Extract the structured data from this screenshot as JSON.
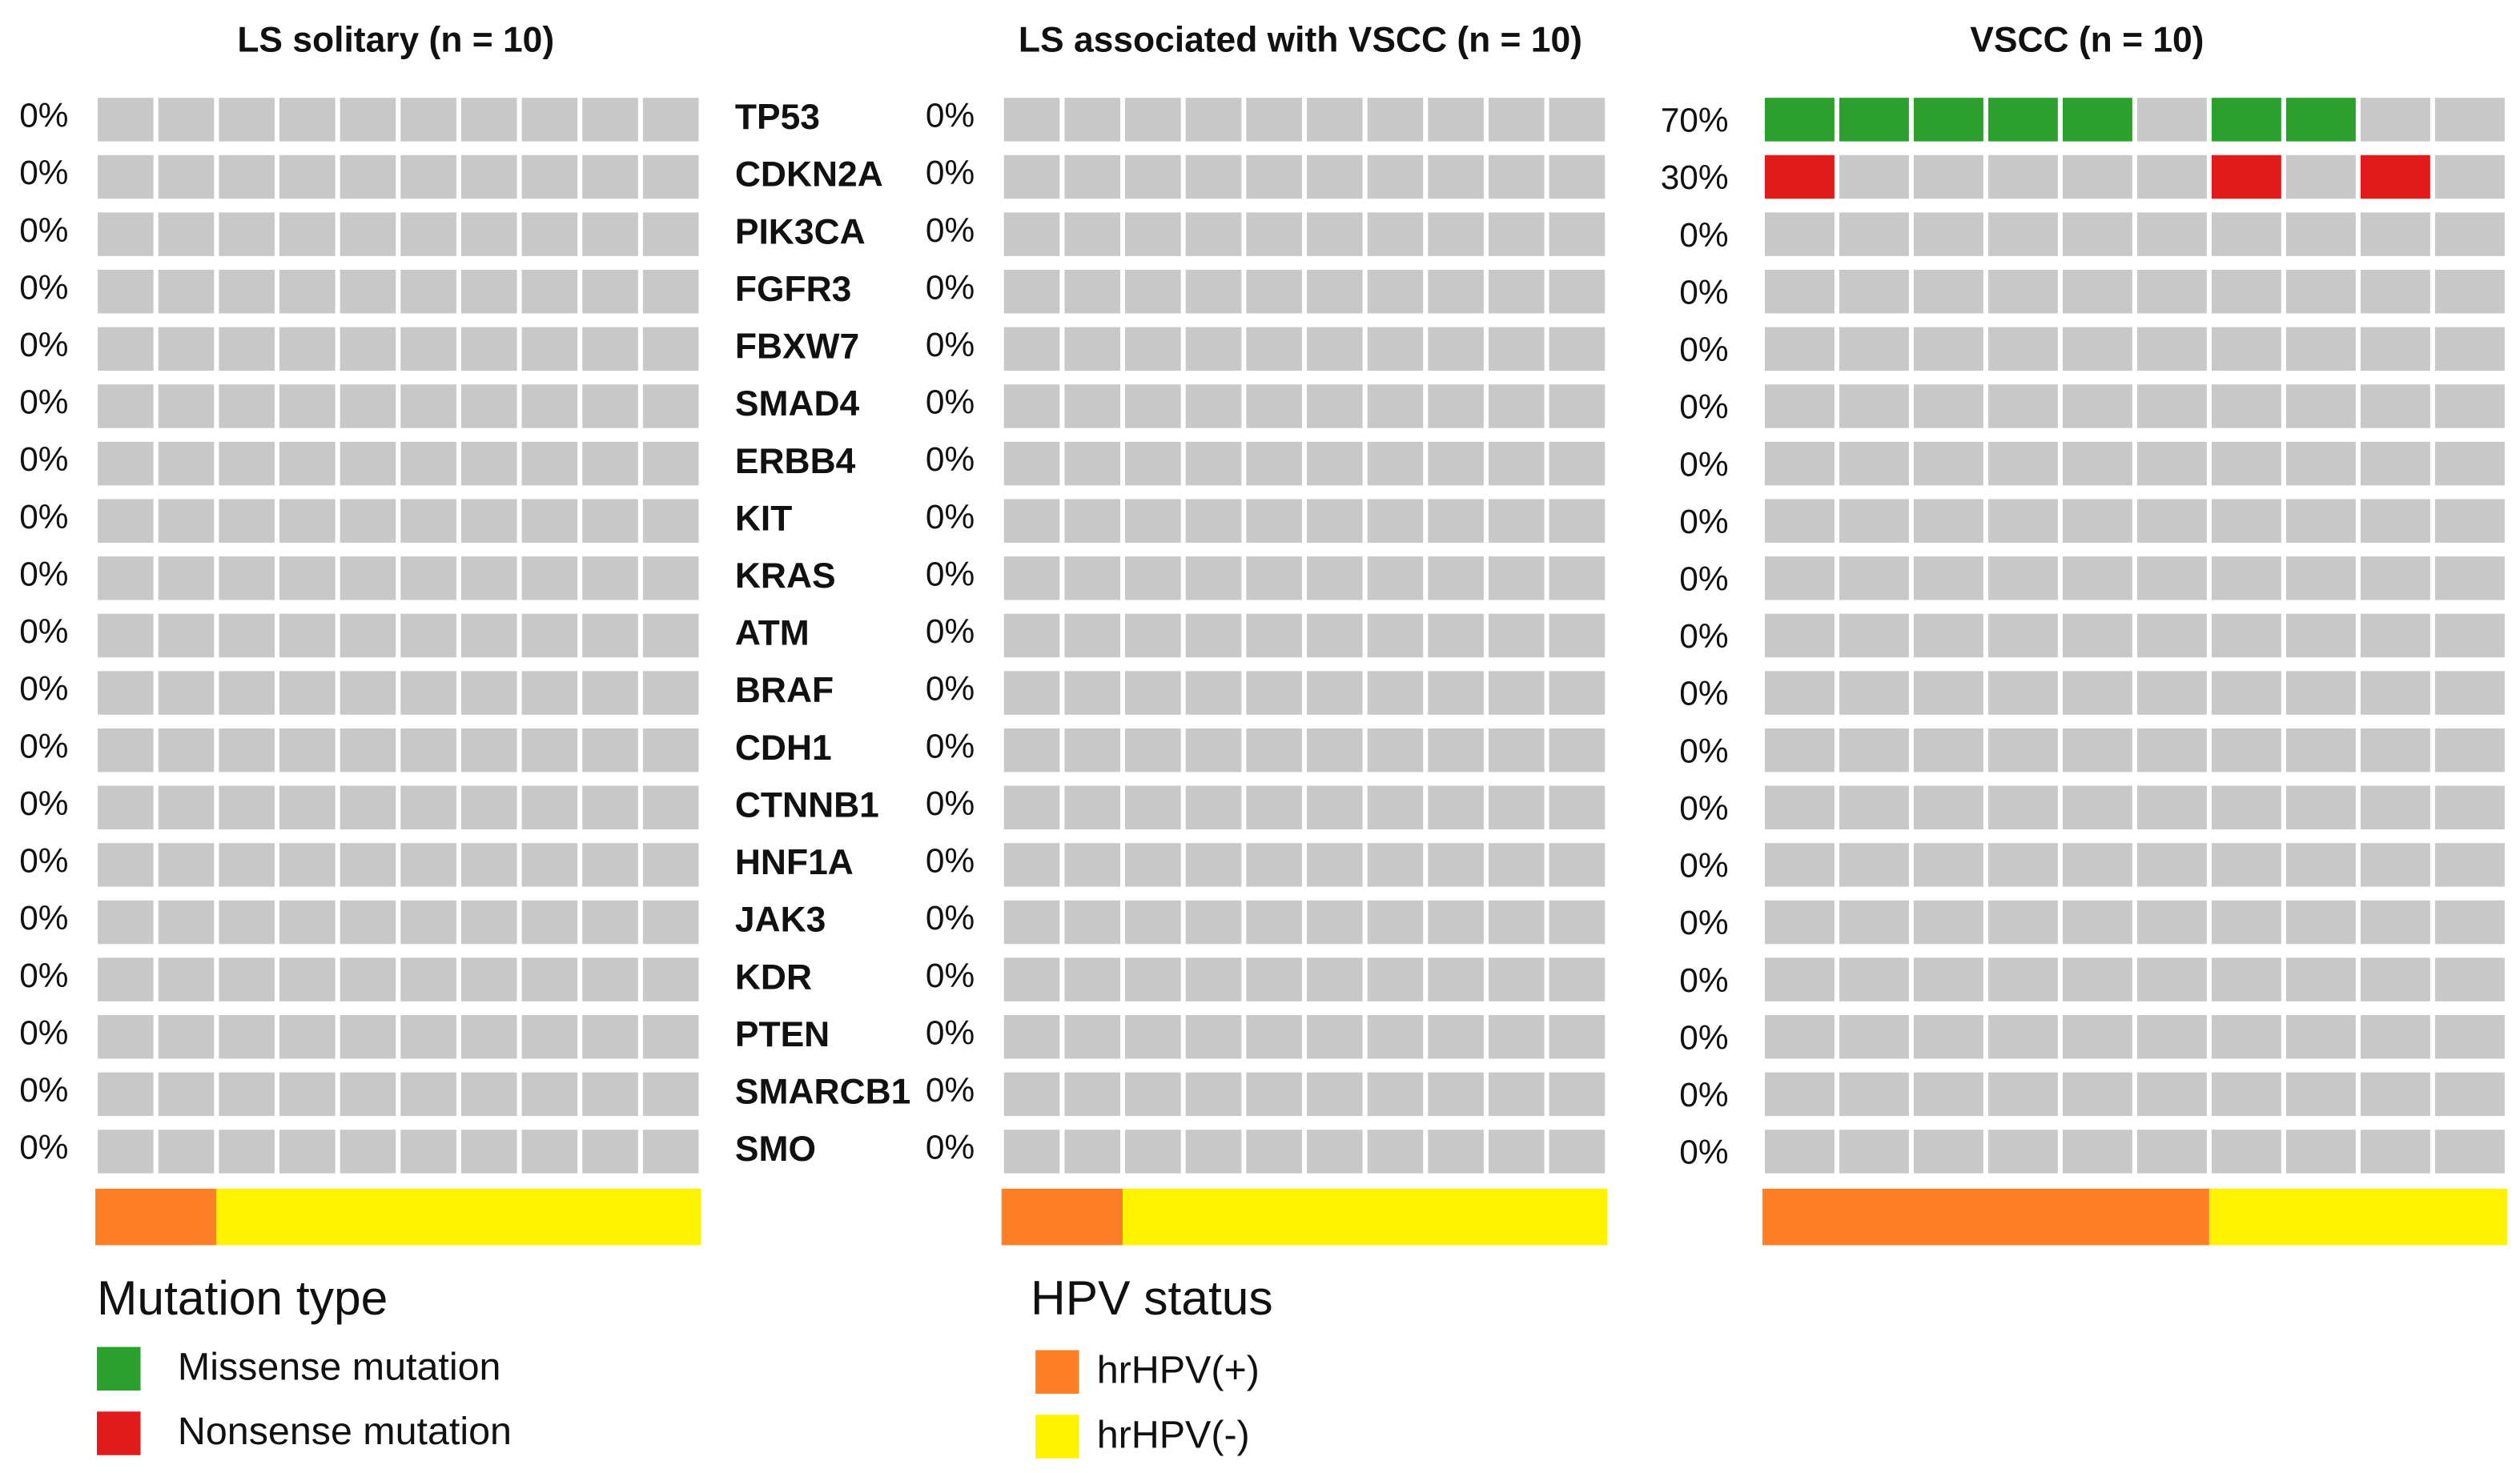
{
  "chart_data": {
    "type": "oncoprint",
    "genes": [
      "TP53",
      "CDKN2A",
      "PIK3CA",
      "FGFR3",
      "FBXW7",
      "SMAD4",
      "ERBB4",
      "KIT",
      "KRAS",
      "ATM",
      "BRAF",
      "CDH1",
      "CTNNB1",
      "HNF1A",
      "JAK3",
      "KDR",
      "PTEN",
      "SMARCB1",
      "SMO"
    ],
    "empty_color": "#c8c8c8",
    "panels": [
      {
        "title": "LS solitary (n = 10)",
        "values": [
          0,
          0,
          0,
          0,
          0,
          0,
          0,
          0,
          0,
          0,
          0,
          0,
          0,
          0,
          0,
          0,
          0,
          0,
          0
        ],
        "value_labels": [
          "0%",
          "0%",
          "0%",
          "0%",
          "0%",
          "0%",
          "0%",
          "0%",
          "0%",
          "0%",
          "0%",
          "0%",
          "0%",
          "0%",
          "0%",
          "0%",
          "0%",
          "0%",
          "0%"
        ],
        "mutations": [
          [
            null,
            null,
            null,
            null,
            null,
            null,
            null,
            null,
            null,
            null
          ],
          [
            null,
            null,
            null,
            null,
            null,
            null,
            null,
            null,
            null,
            null
          ],
          [
            null,
            null,
            null,
            null,
            null,
            null,
            null,
            null,
            null,
            null
          ],
          [
            null,
            null,
            null,
            null,
            null,
            null,
            null,
            null,
            null,
            null
          ],
          [
            null,
            null,
            null,
            null,
            null,
            null,
            null,
            null,
            null,
            null
          ],
          [
            null,
            null,
            null,
            null,
            null,
            null,
            null,
            null,
            null,
            null
          ],
          [
            null,
            null,
            null,
            null,
            null,
            null,
            null,
            null,
            null,
            null
          ],
          [
            null,
            null,
            null,
            null,
            null,
            null,
            null,
            null,
            null,
            null
          ],
          [
            null,
            null,
            null,
            null,
            null,
            null,
            null,
            null,
            null,
            null
          ],
          [
            null,
            null,
            null,
            null,
            null,
            null,
            null,
            null,
            null,
            null
          ],
          [
            null,
            null,
            null,
            null,
            null,
            null,
            null,
            null,
            null,
            null
          ],
          [
            null,
            null,
            null,
            null,
            null,
            null,
            null,
            null,
            null,
            null
          ],
          [
            null,
            null,
            null,
            null,
            null,
            null,
            null,
            null,
            null,
            null
          ],
          [
            null,
            null,
            null,
            null,
            null,
            null,
            null,
            null,
            null,
            null
          ],
          [
            null,
            null,
            null,
            null,
            null,
            null,
            null,
            null,
            null,
            null
          ],
          [
            null,
            null,
            null,
            null,
            null,
            null,
            null,
            null,
            null,
            null
          ],
          [
            null,
            null,
            null,
            null,
            null,
            null,
            null,
            null,
            null,
            null
          ],
          [
            null,
            null,
            null,
            null,
            null,
            null,
            null,
            null,
            null,
            null
          ],
          [
            null,
            null,
            null,
            null,
            null,
            null,
            null,
            null,
            null,
            null
          ]
        ],
        "hpv": [
          2,
          8
        ]
      },
      {
        "title": "LS associated with VSCC (n = 10)",
        "values": [
          0,
          0,
          0,
          0,
          0,
          0,
          0,
          0,
          0,
          0,
          0,
          0,
          0,
          0,
          0,
          0,
          0,
          0,
          0
        ],
        "value_labels": [
          "0%",
          "0%",
          "0%",
          "0%",
          "0%",
          "0%",
          "0%",
          "0%",
          "0%",
          "0%",
          "0%",
          "0%",
          "0%",
          "0%",
          "0%",
          "0%",
          "0%",
          "0%",
          "0%"
        ],
        "mutations": [
          [
            null,
            null,
            null,
            null,
            null,
            null,
            null,
            null,
            null,
            null
          ],
          [
            null,
            null,
            null,
            null,
            null,
            null,
            null,
            null,
            null,
            null
          ],
          [
            null,
            null,
            null,
            null,
            null,
            null,
            null,
            null,
            null,
            null
          ],
          [
            null,
            null,
            null,
            null,
            null,
            null,
            null,
            null,
            null,
            null
          ],
          [
            null,
            null,
            null,
            null,
            null,
            null,
            null,
            null,
            null,
            null
          ],
          [
            null,
            null,
            null,
            null,
            null,
            null,
            null,
            null,
            null,
            null
          ],
          [
            null,
            null,
            null,
            null,
            null,
            null,
            null,
            null,
            null,
            null
          ],
          [
            null,
            null,
            null,
            null,
            null,
            null,
            null,
            null,
            null,
            null
          ],
          [
            null,
            null,
            null,
            null,
            null,
            null,
            null,
            null,
            null,
            null
          ],
          [
            null,
            null,
            null,
            null,
            null,
            null,
            null,
            null,
            null,
            null
          ],
          [
            null,
            null,
            null,
            null,
            null,
            null,
            null,
            null,
            null,
            null
          ],
          [
            null,
            null,
            null,
            null,
            null,
            null,
            null,
            null,
            null,
            null
          ],
          [
            null,
            null,
            null,
            null,
            null,
            null,
            null,
            null,
            null,
            null
          ],
          [
            null,
            null,
            null,
            null,
            null,
            null,
            null,
            null,
            null,
            null
          ],
          [
            null,
            null,
            null,
            null,
            null,
            null,
            null,
            null,
            null,
            null
          ],
          [
            null,
            null,
            null,
            null,
            null,
            null,
            null,
            null,
            null,
            null
          ],
          [
            null,
            null,
            null,
            null,
            null,
            null,
            null,
            null,
            null,
            null
          ],
          [
            null,
            null,
            null,
            null,
            null,
            null,
            null,
            null,
            null,
            null
          ],
          [
            null,
            null,
            null,
            null,
            null,
            null,
            null,
            null,
            null,
            null
          ]
        ],
        "hpv": [
          2,
          8
        ]
      },
      {
        "title": "VSCC (n = 10)",
        "values": [
          70,
          30,
          0,
          0,
          0,
          0,
          0,
          0,
          0,
          0,
          0,
          0,
          0,
          0,
          0,
          0,
          0,
          0,
          0
        ],
        "value_labels": [
          "70%",
          "30%",
          "0%",
          "0%",
          "0%",
          "0%",
          "0%",
          "0%",
          "0%",
          "0%",
          "0%",
          "0%",
          "0%",
          "0%",
          "0%",
          "0%",
          "0%",
          "0%",
          "0%"
        ],
        "mutations": [
          [
            "Missense mutation",
            "Missense mutation",
            "Missense mutation",
            "Missense mutation",
            "Missense mutation",
            null,
            "Missense mutation",
            "Missense mutation",
            null,
            null
          ],
          [
            "Nonsense mutation",
            null,
            null,
            null,
            null,
            null,
            "Nonsense mutation",
            null,
            "Nonsense mutation",
            null
          ],
          [
            null,
            null,
            null,
            null,
            null,
            null,
            null,
            null,
            null,
            null
          ],
          [
            null,
            null,
            null,
            null,
            null,
            null,
            null,
            null,
            null,
            null
          ],
          [
            null,
            null,
            null,
            null,
            null,
            null,
            null,
            null,
            null,
            null
          ],
          [
            null,
            null,
            null,
            null,
            null,
            null,
            null,
            null,
            null,
            null
          ],
          [
            null,
            null,
            null,
            null,
            null,
            null,
            null,
            null,
            null,
            null
          ],
          [
            null,
            null,
            null,
            null,
            null,
            null,
            null,
            null,
            null,
            null
          ],
          [
            null,
            null,
            null,
            null,
            null,
            null,
            null,
            null,
            null,
            null
          ],
          [
            null,
            null,
            null,
            null,
            null,
            null,
            null,
            null,
            null,
            null
          ],
          [
            null,
            null,
            null,
            null,
            null,
            null,
            null,
            null,
            null,
            null
          ],
          [
            null,
            null,
            null,
            null,
            null,
            null,
            null,
            null,
            null,
            null
          ],
          [
            null,
            null,
            null,
            null,
            null,
            null,
            null,
            null,
            null,
            null
          ],
          [
            null,
            null,
            null,
            null,
            null,
            null,
            null,
            null,
            null,
            null
          ],
          [
            null,
            null,
            null,
            null,
            null,
            null,
            null,
            null,
            null,
            null
          ],
          [
            null,
            null,
            null,
            null,
            null,
            null,
            null,
            null,
            null,
            null
          ],
          [
            null,
            null,
            null,
            null,
            null,
            null,
            null,
            null,
            null,
            null
          ],
          [
            null,
            null,
            null,
            null,
            null,
            null,
            null,
            null,
            null,
            null
          ],
          [
            null,
            null,
            null,
            null,
            null,
            null,
            null,
            null,
            null,
            null
          ]
        ],
        "hpv": [
          6,
          4
        ]
      }
    ],
    "mutation_legend": {
      "title": "Mutation type",
      "items": [
        {
          "name": "Missense mutation",
          "color": "#2ca02c"
        },
        {
          "name": "Nonsense mutation",
          "color": "#e31a1c"
        }
      ]
    },
    "hpv_legend": {
      "title": "HPV status",
      "items": [
        {
          "name": "hrHPV(+)",
          "color": "#ff7f27"
        },
        {
          "name": "hrHPV(-)",
          "color": "#fff200"
        }
      ]
    }
  }
}
